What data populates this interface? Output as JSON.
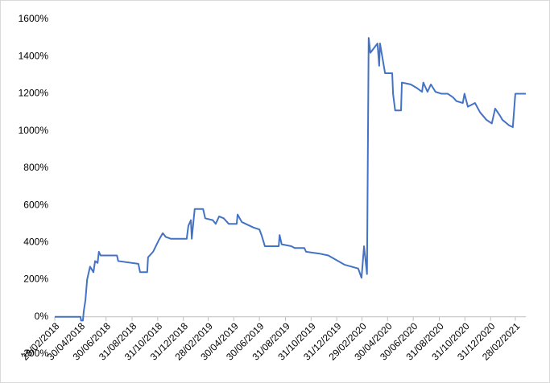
{
  "chart_data": {
    "type": "line",
    "x": [
      "2018-02-28",
      "2018-04-03",
      "2018-04-30",
      "2018-05-02",
      "2018-05-06",
      "2018-05-08",
      "2018-05-12",
      "2018-05-16",
      "2018-05-23",
      "2018-05-31",
      "2018-06-04",
      "2018-06-10",
      "2018-06-13",
      "2018-06-17",
      "2018-07-26",
      "2018-07-29",
      "2018-09-15",
      "2018-09-19",
      "2018-10-06",
      "2018-10-08",
      "2018-10-20",
      "2018-11-02",
      "2018-11-12",
      "2018-11-19",
      "2018-12-01",
      "2019-01-08",
      "2019-01-12",
      "2019-01-18",
      "2019-01-20",
      "2019-01-27",
      "2019-02-16",
      "2019-02-21",
      "2019-03-11",
      "2019-03-18",
      "2019-03-26",
      "2019-04-06",
      "2019-04-18",
      "2019-05-07",
      "2019-05-09",
      "2019-05-19",
      "2019-06-16",
      "2019-06-30",
      "2019-07-05",
      "2019-07-13",
      "2019-08-15",
      "2019-08-17",
      "2019-08-22",
      "2019-09-14",
      "2019-09-22",
      "2019-10-15",
      "2019-10-19",
      "2019-11-20",
      "2019-12-11",
      "2020-01-19",
      "2020-02-20",
      "2020-02-28",
      "2020-03-05",
      "2020-03-12",
      "2020-03-16",
      "2020-03-20",
      "2020-04-06",
      "2020-04-10",
      "2020-04-12",
      "2020-04-24",
      "2020-05-11",
      "2020-05-13",
      "2020-05-18",
      "2020-06-01",
      "2020-06-03",
      "2020-06-24",
      "2020-07-09",
      "2020-07-21",
      "2020-07-24",
      "2020-08-03",
      "2020-08-11",
      "2020-08-22",
      "2020-09-05",
      "2020-09-20",
      "2020-10-03",
      "2020-10-11",
      "2020-10-26",
      "2020-10-30",
      "2020-11-07",
      "2020-11-24",
      "2020-12-06",
      "2020-12-21",
      "2021-01-03",
      "2021-01-11",
      "2021-01-23",
      "2021-01-28",
      "2021-02-13",
      "2021-02-22",
      "2021-02-28",
      "2021-03-25"
    ],
    "series": [
      {
        "color": "#4472c4",
        "values": [
          0,
          0,
          0,
          -20,
          -20,
          30,
          90,
          200,
          270,
          240,
          300,
          290,
          350,
          330,
          330,
          300,
          285,
          240,
          240,
          320,
          350,
          410,
          450,
          430,
          420,
          420,
          490,
          520,
          420,
          580,
          580,
          530,
          520,
          500,
          540,
          530,
          500,
          500,
          550,
          510,
          480,
          470,
          440,
          380,
          380,
          440,
          390,
          380,
          370,
          370,
          350,
          340,
          330,
          280,
          260,
          210,
          380,
          230,
          1500,
          1420,
          1470,
          1350,
          1470,
          1310,
          1310,
          1200,
          1110,
          1110,
          1260,
          1250,
          1230,
          1210,
          1260,
          1210,
          1250,
          1210,
          1200,
          1200,
          1180,
          1160,
          1150,
          1200,
          1130,
          1150,
          1100,
          1060,
          1040,
          1120,
          1080,
          1060,
          1030,
          1020,
          1200,
          1200
        ]
      }
    ],
    "xlim": [
      "2018-02-28",
      "2021-03-25"
    ],
    "xticks": [
      {
        "value": "2018-02-28",
        "label": "28/02/2018"
      },
      {
        "value": "2018-04-30",
        "label": "30/04/2018"
      },
      {
        "value": "2018-06-30",
        "label": "30/06/2018"
      },
      {
        "value": "2018-08-31",
        "label": "31/08/2018"
      },
      {
        "value": "2018-10-31",
        "label": "31/10/2018"
      },
      {
        "value": "2018-12-31",
        "label": "31/12/2018"
      },
      {
        "value": "2019-02-28",
        "label": "28/02/2019"
      },
      {
        "value": "2019-04-30",
        "label": "30/04/2019"
      },
      {
        "value": "2019-06-30",
        "label": "30/06/2019"
      },
      {
        "value": "2019-08-31",
        "label": "31/08/2019"
      },
      {
        "value": "2019-10-31",
        "label": "31/10/2019"
      },
      {
        "value": "2019-12-31",
        "label": "31/12/2019"
      },
      {
        "value": "2020-02-29",
        "label": "29/02/2020"
      },
      {
        "value": "2020-04-30",
        "label": "30/04/2020"
      },
      {
        "value": "2020-06-30",
        "label": "30/06/2020"
      },
      {
        "value": "2020-08-31",
        "label": "31/08/2020"
      },
      {
        "value": "2020-10-31",
        "label": "31/10/2020"
      },
      {
        "value": "2020-12-31",
        "label": "31/12/2020"
      },
      {
        "value": "2021-02-28",
        "label": "28/02/2021"
      }
    ],
    "ylim": [
      -200,
      1600
    ],
    "yticks": [
      {
        "value": -200,
        "label": "-200%"
      },
      {
        "value": 0,
        "label": "0%"
      },
      {
        "value": 200,
        "label": "200%"
      },
      {
        "value": 400,
        "label": "400%"
      },
      {
        "value": 600,
        "label": "600%"
      },
      {
        "value": 800,
        "label": "800%"
      },
      {
        "value": 1000,
        "label": "1000%"
      },
      {
        "value": 1200,
        "label": "1200%"
      },
      {
        "value": 1400,
        "label": "1400%"
      },
      {
        "value": 1600,
        "label": "1600%"
      }
    ],
    "grid": false
  }
}
